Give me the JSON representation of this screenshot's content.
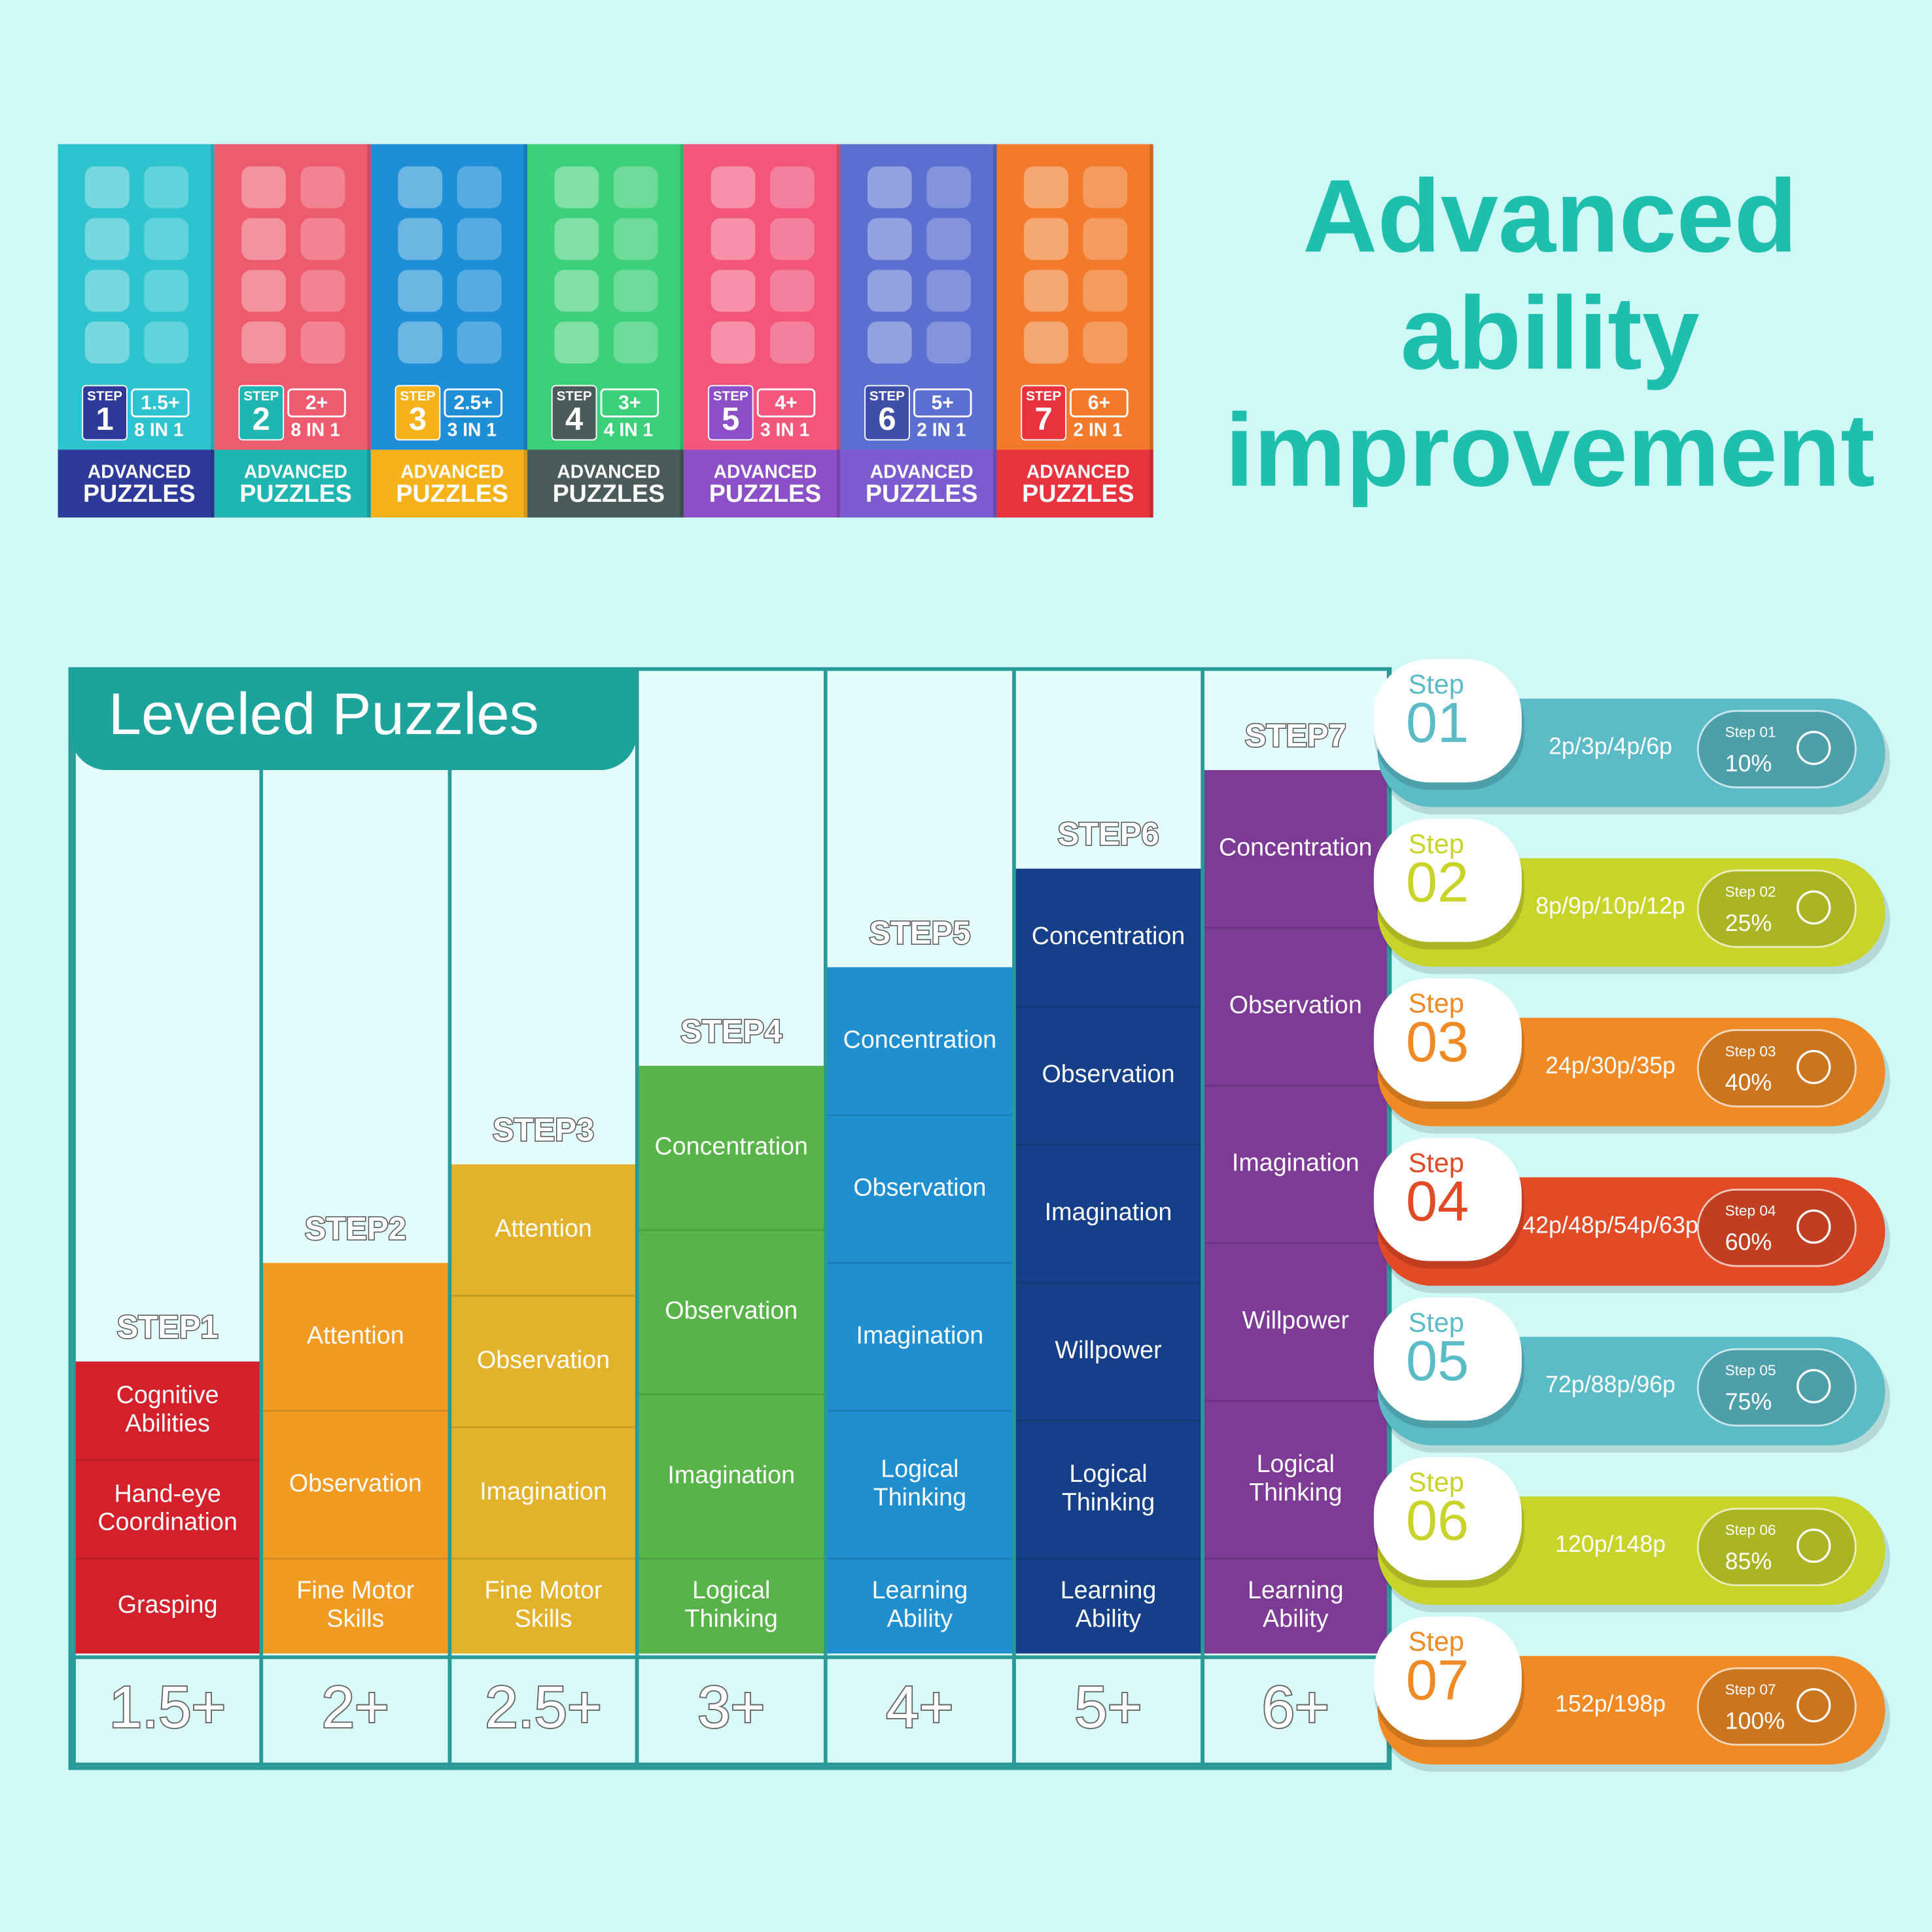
{
  "header": {
    "title_lines": [
      "Advanced",
      "ability",
      "improvement"
    ]
  },
  "boxes": [
    {
      "step_word": "STEP",
      "step": "1",
      "age": "1.5+",
      "count": "8 IN 1",
      "brand": "ADVANCED",
      "product": "PUZZLES"
    },
    {
      "step_word": "STEP",
      "step": "2",
      "age": "2+",
      "count": "8 IN 1",
      "brand": "ADVANCED",
      "product": "PUZZLES"
    },
    {
      "step_word": "STEP",
      "step": "3",
      "age": "2.5+",
      "count": "3 IN 1",
      "brand": "ADVANCED",
      "product": "PUZZLES"
    },
    {
      "step_word": "STEP",
      "step": "4",
      "age": "3+",
      "count": "4 IN 1",
      "brand": "ADVANCED",
      "product": "PUZZLES"
    },
    {
      "step_word": "STEP",
      "step": "5",
      "age": "4+",
      "count": "3 IN 1",
      "brand": "ADVANCED",
      "product": "PUZZLES"
    },
    {
      "step_word": "STEP",
      "step": "6",
      "age": "5+",
      "count": "2 IN 1",
      "brand": "ADVANCED",
      "product": "PUZZLES"
    },
    {
      "step_word": "STEP",
      "step": "7",
      "age": "6+",
      "count": "2 IN 1",
      "brand": "ADVANCED",
      "product": "PUZZLES"
    }
  ],
  "table": {
    "title": "Leveled Puzzles",
    "columns": [
      {
        "step": "STEP1",
        "age": "1.5+",
        "skills": [
          [
            "Cognitive",
            "Abilities"
          ],
          [
            "Hand-eye",
            "Coordination"
          ],
          [
            "Grasping"
          ]
        ]
      },
      {
        "step": "STEP2",
        "age": "2+",
        "skills": [
          [
            "Attention"
          ],
          [
            "Observation"
          ],
          [
            "Fine Motor",
            "Skills"
          ]
        ]
      },
      {
        "step": "STEP3",
        "age": "2.5+",
        "skills": [
          [
            "Attention"
          ],
          [
            "Observation"
          ],
          [
            "Imagination"
          ],
          [
            "Fine Motor",
            "Skills"
          ]
        ]
      },
      {
        "step": "STEP4",
        "age": "3+",
        "skills": [
          [
            "Concentration"
          ],
          [
            "Observation"
          ],
          [
            "Imagination"
          ],
          [
            "Logical",
            "Thinking"
          ]
        ]
      },
      {
        "step": "STEP5",
        "age": "4+",
        "skills": [
          [
            "Concentration"
          ],
          [
            "Observation"
          ],
          [
            "Imagination"
          ],
          [
            "Logical",
            "Thinking"
          ],
          [
            "Learning",
            "Ability"
          ]
        ]
      },
      {
        "step": "STEP6",
        "age": "5+",
        "skills": [
          [
            "Concentration"
          ],
          [
            "Observation"
          ],
          [
            "Imagination"
          ],
          [
            "Willpower"
          ],
          [
            "Logical",
            "Thinking"
          ],
          [
            "Learning",
            "Ability"
          ]
        ]
      },
      {
        "step": "STEP7",
        "age": "6+",
        "skills": [
          [
            "Concentration"
          ],
          [
            "Observation"
          ],
          [
            "Imagination"
          ],
          [
            "Willpower"
          ],
          [
            "Logical",
            "Thinking"
          ],
          [
            "Learning",
            "Ability"
          ]
        ]
      }
    ]
  },
  "levels": [
    {
      "label": "Step",
      "number": "01",
      "pieces": "2p/3p/4p/6p",
      "badge": "Step 01",
      "percent": "10%"
    },
    {
      "label": "Step",
      "number": "02",
      "pieces": "8p/9p/10p/12p",
      "badge": "Step 02",
      "percent": "25%"
    },
    {
      "label": "Step",
      "number": "03",
      "pieces": "24p/30p/35p",
      "badge": "Step 03",
      "percent": "40%"
    },
    {
      "label": "Step",
      "number": "04",
      "pieces": "42p/48p/54p/63p",
      "badge": "Step 04",
      "percent": "60%"
    },
    {
      "label": "Step",
      "number": "05",
      "pieces": "72p/88p/96p",
      "badge": "Step 05",
      "percent": "75%"
    },
    {
      "label": "Step",
      "number": "06",
      "pieces": "120p/148p",
      "badge": "Step 06",
      "percent": "85%"
    },
    {
      "label": "Step",
      "number": "07",
      "pieces": "152p/198p",
      "badge": "Step 07",
      "percent": "100%"
    }
  ]
}
